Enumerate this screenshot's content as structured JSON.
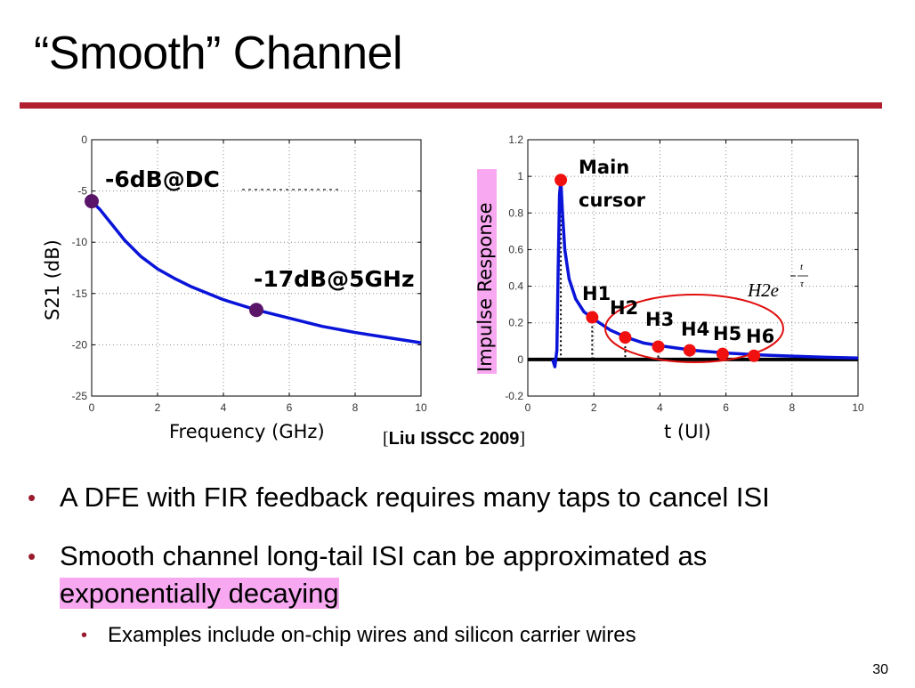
{
  "title": "“Smooth” Channel",
  "chart_data": [
    {
      "type": "line",
      "xlabel": "Frequency (GHz)",
      "ylabel": "S21 (dB)",
      "xlim": [
        0,
        10
      ],
      "ylim": [
        -25,
        0
      ],
      "xticks": [
        "0",
        "2",
        "4",
        "6",
        "8",
        "10"
      ],
      "yticks": [
        "0",
        "-5",
        "-10",
        "-15",
        "-20",
        "-25"
      ],
      "grid": true,
      "series": [
        {
          "name": "S21",
          "x": [
            0,
            0.25,
            0.5,
            1,
            1.5,
            2,
            2.5,
            3,
            4,
            5,
            6,
            7,
            8,
            9,
            10
          ],
          "y": [
            -6,
            -6.8,
            -7.8,
            -9.8,
            -11.4,
            -12.6,
            -13.5,
            -14.3,
            -15.6,
            -16.6,
            -17.4,
            -18.2,
            -18.8,
            -19.3,
            -19.8
          ]
        }
      ],
      "markers": [
        {
          "x": 0,
          "y": -6
        },
        {
          "x": 5,
          "y": -16.6
        }
      ],
      "annotations": [
        "-6dB@DC",
        "-17dB@5GHz"
      ]
    },
    {
      "type": "line",
      "xlabel": "t (UI)",
      "ylabel": "Impulse Response",
      "xlim": [
        0,
        10
      ],
      "ylim": [
        -0.2,
        1.2
      ],
      "xticks": [
        "0",
        "2",
        "4",
        "6",
        "8",
        "10"
      ],
      "yticks": [
        "1.2",
        "1",
        "0.8",
        "0.6",
        "0.4",
        "0.2",
        "0",
        "-0.2"
      ],
      "grid": true,
      "series": [
        {
          "name": "impulse response",
          "x": [
            0.75,
            0.82,
            0.88,
            0.92,
            0.96,
            1.0,
            1.05,
            1.12,
            1.25,
            1.45,
            1.7,
            2.0,
            2.5,
            3.0,
            3.5,
            4.0,
            5.0,
            6.0,
            7.0,
            8.0,
            9.0,
            10.0
          ],
          "y": [
            0,
            -0.04,
            0.05,
            0.5,
            0.9,
            0.98,
            0.8,
            0.6,
            0.44,
            0.33,
            0.26,
            0.22,
            0.16,
            0.12,
            0.09,
            0.075,
            0.05,
            0.035,
            0.025,
            0.018,
            0.012,
            0.008
          ]
        }
      ],
      "cursors": [
        {
          "label": "Main cursor",
          "x": 1.0,
          "y": 0.98
        },
        {
          "label": "H1",
          "x": 1.95,
          "y": 0.23
        },
        {
          "label": "H2",
          "x": 2.95,
          "y": 0.12
        },
        {
          "label": "H3",
          "x": 3.95,
          "y": 0.07
        },
        {
          "label": "H4",
          "x": 4.9,
          "y": 0.05
        },
        {
          "label": "H5",
          "x": 5.9,
          "y": 0.03
        },
        {
          "label": "H6",
          "x": 6.85,
          "y": 0.02
        }
      ],
      "formula": "H2e^(-t/τ)"
    }
  ],
  "labels": {
    "ann_dc": "-6dB@DC",
    "ann_5g": "-17dB@5GHz",
    "main": "Main",
    "cursor": "cursor",
    "formula_base": "H2e",
    "formula_num": "t",
    "formula_den": "τ"
  },
  "citation": {
    "open": "[",
    "text": "Liu ISSCC 2009",
    "close": "]"
  },
  "bullets": [
    {
      "text": "A DFE with FIR feedback requires many taps to cancel ISI"
    },
    {
      "text_before": "Smooth channel long-tail ISI can be approximated as",
      "highlight": "exponentially decaying"
    }
  ],
  "sub_bullets": [
    {
      "text": "Examples include on-chip wires and silicon carrier wires"
    }
  ],
  "page_number": "30",
  "colors": {
    "accent": "#b02030",
    "curve": "#0a14d8",
    "marker_left": "#5a1468",
    "marker_right": "#f01010",
    "highlight": "#f7a8f0"
  }
}
